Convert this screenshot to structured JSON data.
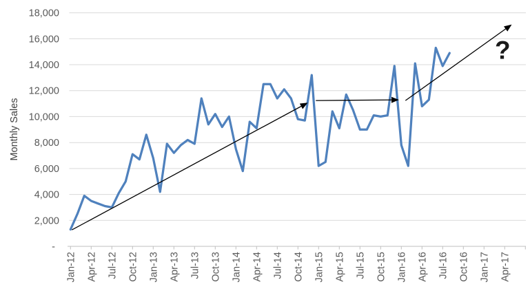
{
  "chart_data": {
    "type": "line",
    "title": "",
    "xlabel": "",
    "ylabel": "Monthly Sales",
    "ylim": [
      0,
      18000
    ],
    "ytick_step": 2000,
    "ytick_labels": [
      "-",
      "2,000",
      "4,000",
      "6,000",
      "8,000",
      "10,000",
      "12,000",
      "14,000",
      "16,000",
      "18,000"
    ],
    "xtick_labels": [
      "Jan-12",
      "Apr-12",
      "Jul-12",
      "Oct-12",
      "Jan-13",
      "Apr-13",
      "Jul-13",
      "Oct-13",
      "Jan-14",
      "Apr-14",
      "Jul-14",
      "Oct-14",
      "Jan-15",
      "Apr-15",
      "Jul-15",
      "Oct-15",
      "Jan-16",
      "Apr-16",
      "Jul-16",
      "Oct-16",
      "Jan-17",
      "Apr-17"
    ],
    "xtick_month_step": 3,
    "grid": "horizontal",
    "legend": "none",
    "colors": {
      "line": "#4F81BD",
      "grid": "#d9d9d9",
      "axis": "#bfbfbf",
      "tick_label": "#595959",
      "axis_title": "#404040",
      "annotation": "#1a1a1a"
    },
    "series": [
      {
        "name": "Monthly Sales",
        "start_month": 0,
        "months": [
          "Jan-12",
          "Feb-12",
          "Mar-12",
          "Apr-12",
          "May-12",
          "Jun-12",
          "Jul-12",
          "Aug-12",
          "Sep-12",
          "Oct-12",
          "Nov-12",
          "Dec-12",
          "Jan-13",
          "Feb-13",
          "Mar-13",
          "Apr-13",
          "May-13",
          "Jun-13",
          "Jul-13",
          "Aug-13",
          "Sep-13",
          "Oct-13",
          "Nov-13",
          "Dec-13",
          "Jan-14",
          "Feb-14",
          "Mar-14",
          "Apr-14",
          "May-14",
          "Jun-14",
          "Jul-14",
          "Aug-14",
          "Sep-14",
          "Oct-14",
          "Nov-14",
          "Dec-14",
          "Jan-15",
          "Feb-15",
          "Mar-15",
          "Apr-15",
          "May-15",
          "Jun-15",
          "Jul-15",
          "Aug-15",
          "Sep-15",
          "Oct-15",
          "Nov-15",
          "Dec-15",
          "Jan-16",
          "Feb-16",
          "Mar-16",
          "Apr-16",
          "May-16",
          "Jun-16",
          "Jul-16",
          "Aug-16"
        ],
        "values": [
          1300,
          2500,
          3900,
          3500,
          3300,
          3100,
          3000,
          4100,
          5000,
          7100,
          6700,
          8600,
          6800,
          4200,
          7900,
          7200,
          7800,
          8200,
          7900,
          11400,
          9400,
          10200,
          9200,
          10000,
          7500,
          5800,
          9600,
          9100,
          12500,
          12500,
          11400,
          12100,
          11400,
          9800,
          9700,
          13200,
          6200,
          6500,
          10400,
          9100,
          11700,
          10500,
          9000,
          9000,
          10100,
          10000,
          10100,
          13900,
          7800,
          6200,
          14100,
          10800,
          11300,
          15300,
          13900,
          14900
        ]
      }
    ],
    "annotations": {
      "trend_arrows": [
        {
          "name": "trend-arrow-growth-2012-2014",
          "from_month": 0.2,
          "from_value": 1270,
          "to_month": 34.3,
          "to_value": 11030
        },
        {
          "name": "trend-arrow-plateau-2015",
          "from_month": 35.6,
          "from_value": 11240,
          "to_month": 47.5,
          "to_value": 11290
        },
        {
          "name": "trend-arrow-growth-2016-2017",
          "from_month": 48.6,
          "from_value": 11240,
          "to_month": 63.9,
          "to_value": 17050
        }
      ],
      "question_mark": {
        "label": "?",
        "month": 62.7,
        "value": 15150
      }
    }
  }
}
